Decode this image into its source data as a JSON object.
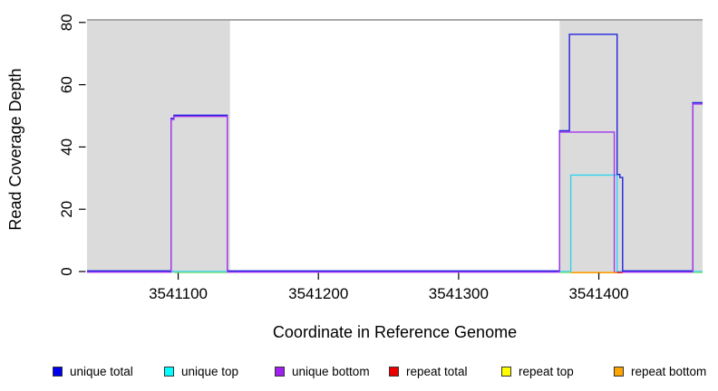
{
  "chart_data": {
    "type": "line",
    "title": "",
    "xlabel": "Coordinate in Reference Genome",
    "ylabel": "Read Coverage Depth",
    "xlim": [
      3541035,
      3541474
    ],
    "ylim": [
      0,
      81
    ],
    "x_ticks": [
      "3541100",
      "3541200",
      "3541300",
      "3541400"
    ],
    "x_tick_values": [
      3541100,
      3541200,
      3541300,
      3541400
    ],
    "y_ticks": [
      "0",
      "20",
      "40",
      "60",
      "80"
    ],
    "y_tick_values": [
      0,
      20,
      40,
      60,
      80
    ],
    "grid": false,
    "legend_position": "bottom",
    "highlight_regions": [
      {
        "name": "shaded-region-left",
        "start": 3541035,
        "end": 3541137,
        "fill": "#DBDBDB"
      },
      {
        "name": "shaded-region-right",
        "start": 3541372,
        "end": 3541474,
        "fill": "#DBDBDB"
      }
    ],
    "region_top_line_color": "#8C8C8C",
    "series": [
      {
        "name": "unique total",
        "color": "#2222E0",
        "offset": -0.7,
        "points": [
          [
            3541035,
            0
          ],
          [
            3541095,
            0
          ],
          [
            3541095,
            49
          ],
          [
            3541097,
            49
          ],
          [
            3541097,
            50
          ],
          [
            3541135,
            50
          ],
          [
            3541135,
            0
          ],
          [
            3541372,
            0
          ],
          [
            3541372,
            45
          ],
          [
            3541379,
            45
          ],
          [
            3541379,
            76
          ],
          [
            3541413,
            76
          ],
          [
            3541413,
            31
          ],
          [
            3541415,
            31
          ],
          [
            3541415,
            30
          ],
          [
            3541417,
            30
          ],
          [
            3541417,
            0
          ],
          [
            3541467,
            0
          ],
          [
            3541467,
            54
          ],
          [
            3541474,
            54
          ]
        ]
      },
      {
        "name": "unique top",
        "color": "#2ED3F0",
        "offset": 0,
        "points": [
          [
            3541035,
            0
          ],
          [
            3541380,
            0
          ],
          [
            3541380,
            31
          ],
          [
            3541413,
            31
          ],
          [
            3541413,
            0
          ],
          [
            3541474,
            0
          ]
        ]
      },
      {
        "name": "unique bottom",
        "color": "#A235F0",
        "offset": 0.7,
        "points": [
          [
            3541035,
            0
          ],
          [
            3541095,
            0
          ],
          [
            3541095,
            49
          ],
          [
            3541097,
            49
          ],
          [
            3541097,
            50
          ],
          [
            3541135,
            50
          ],
          [
            3541135,
            0
          ],
          [
            3541372,
            0
          ],
          [
            3541372,
            45
          ],
          [
            3541411,
            45
          ],
          [
            3541411,
            0
          ],
          [
            3541467,
            0
          ],
          [
            3541467,
            54
          ],
          [
            3541474,
            54
          ]
        ]
      }
    ],
    "repeat_series_note": "repeat total, repeat top and repeat bottom stay at depth 0 across the visible range",
    "baseline_segments": [
      {
        "label": "overlap at zero under left peak",
        "color": "#8FE68F",
        "start": 3541097,
        "end": 3541135
      },
      {
        "label": "overlap at zero",
        "color": "#8FE68F",
        "start": 3541372,
        "end": 3541380
      },
      {
        "label": "repeat bottom",
        "color": "#FF9E00",
        "start": 3541380,
        "end": 3541413
      },
      {
        "label": "repeat total",
        "color": "#DD3333",
        "start": 3541413,
        "end": 3541417
      },
      {
        "label": "overlap at zero at right edge",
        "color": "#8FE68F",
        "start": 3541467,
        "end": 3541474
      }
    ],
    "legend": [
      {
        "label": "unique total",
        "color": "#0000EE"
      },
      {
        "label": "unique top",
        "color": "#00FFFF"
      },
      {
        "label": "unique bottom",
        "color": "#A020F0"
      },
      {
        "label": "repeat total",
        "color": "#EE0000"
      },
      {
        "label": "repeat top",
        "color": "#FFFF00"
      },
      {
        "label": "repeat bottom",
        "color": "#FFA500"
      }
    ]
  }
}
